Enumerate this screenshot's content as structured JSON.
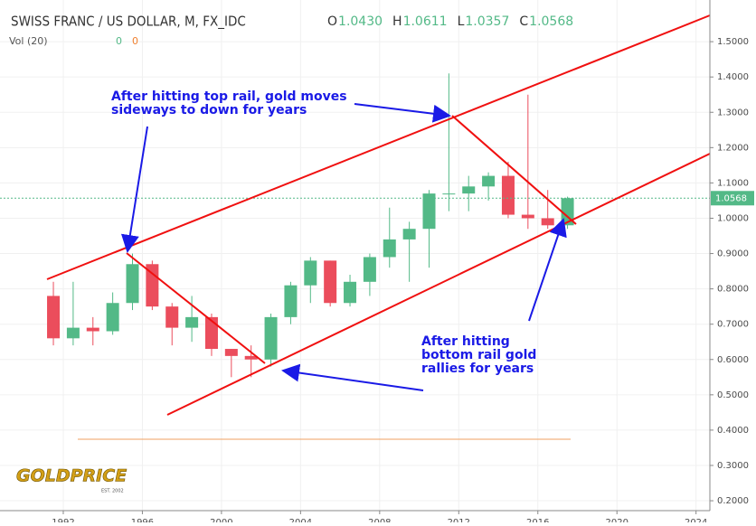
{
  "header": {
    "title": "SWISS FRANC / US DOLLAR, M, FX_IDC",
    "ohlc": [
      {
        "k": "O",
        "v": "1.0430"
      },
      {
        "k": "H",
        "v": "1.0611"
      },
      {
        "k": "L",
        "v": "1.0357"
      },
      {
        "k": "C",
        "v": "1.0568"
      }
    ],
    "volume_label": "Vol (20)",
    "volume_values": [
      "0",
      "0"
    ]
  },
  "logo": {
    "name": "GOLDPRICE",
    "tagline": "EST. 2002"
  },
  "chart_data": {
    "type": "candlestick",
    "x": [
      1991.5,
      1992.5,
      1993.5,
      1994.5,
      1995.5,
      1996.5,
      1997.5,
      1998.5,
      1999.5,
      2000.5,
      2001.5,
      2002.5,
      2003.5,
      2004.5,
      2005.5,
      2006.5,
      2007.5,
      2008.5,
      2009.5,
      2010.5,
      2011.5,
      2012.5,
      2013.5,
      2014.5,
      2015.5,
      2016.5,
      2017.5
    ],
    "open": [
      0.78,
      0.66,
      0.69,
      0.68,
      0.76,
      0.87,
      0.75,
      0.69,
      0.72,
      0.63,
      0.61,
      0.6,
      0.72,
      0.81,
      0.88,
      0.76,
      0.82,
      0.89,
      0.94,
      0.97,
      1.07,
      1.07,
      1.09,
      1.12,
      1.01,
      1.0,
      0.98
    ],
    "high": [
      0.82,
      0.82,
      0.72,
      0.79,
      0.9,
      0.88,
      0.76,
      0.78,
      0.73,
      0.63,
      0.64,
      0.73,
      0.82,
      0.89,
      0.88,
      0.84,
      0.9,
      1.03,
      0.99,
      1.08,
      1.41,
      1.12,
      1.13,
      1.16,
      1.35,
      1.08,
      1.0611
    ],
    "low": [
      0.64,
      0.64,
      0.64,
      0.67,
      0.74,
      0.74,
      0.64,
      0.65,
      0.61,
      0.55,
      0.55,
      0.58,
      0.7,
      0.76,
      0.75,
      0.75,
      0.78,
      0.86,
      0.82,
      0.86,
      1.02,
      1.02,
      1.05,
      1.0,
      0.97,
      0.97,
      0.97
    ],
    "close": [
      0.66,
      0.69,
      0.68,
      0.76,
      0.87,
      0.75,
      0.69,
      0.72,
      0.63,
      0.61,
      0.6,
      0.72,
      0.81,
      0.88,
      0.76,
      0.82,
      0.89,
      0.94,
      0.97,
      1.07,
      1.07,
      1.09,
      1.12,
      1.01,
      1.0,
      0.98,
      1.0568
    ],
    "up_color": "#53b987",
    "down_color": "#eb4d5c",
    "xlim": [
      1988.8,
      2024.7
    ],
    "xticks": [
      1992,
      1996,
      2000,
      2004,
      2008,
      2012,
      2016,
      2020,
      2024
    ],
    "ylim": [
      0.172,
      1.618
    ],
    "yticks": [
      {
        "value": 0.2,
        "label": "0.2000"
      },
      {
        "value": 0.3,
        "label": "0.3000"
      },
      {
        "value": 0.4,
        "label": "0.4000"
      },
      {
        "value": 0.5,
        "label": "0.5000"
      },
      {
        "value": 0.6,
        "label": "0.6000"
      },
      {
        "value": 0.7,
        "label": "0.7000"
      },
      {
        "value": 0.8,
        "label": "0.8000"
      },
      {
        "value": 0.9,
        "label": "0.9000"
      },
      {
        "value": 1.0,
        "label": "1.0000"
      },
      {
        "value": 1.1,
        "label": "1.1000"
      },
      {
        "value": 1.2,
        "label": "1.2000"
      },
      {
        "value": 1.3,
        "label": "1.3000"
      },
      {
        "value": 1.4,
        "label": "1.4000"
      },
      {
        "value": 1.5,
        "label": "1.5000"
      }
    ],
    "annotations": [
      [
        "After hitting top rail, gold moves",
        "sideways to down for years"
      ],
      [
        "After hitting",
        "bottom rail gold",
        "rallies for years"
      ]
    ]
  }
}
